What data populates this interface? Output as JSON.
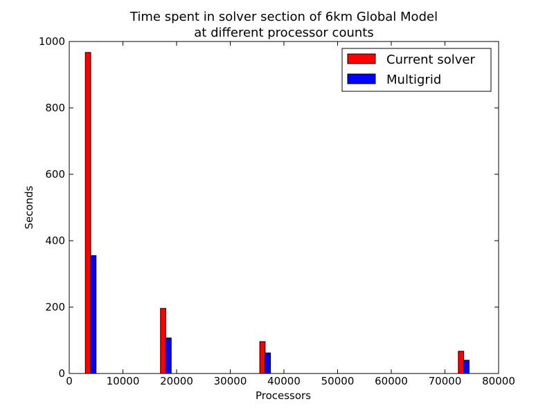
{
  "chart_data": {
    "type": "bar",
    "title": "Time spent in solver section of 6km Global Model",
    "subtitle": "at different processor counts",
    "xlabel": "Processors",
    "ylabel": "Seconds",
    "xlim": [
      0,
      80000
    ],
    "ylim": [
      0,
      1000
    ],
    "xticks": [
      0,
      10000,
      20000,
      30000,
      40000,
      50000,
      60000,
      70000,
      80000
    ],
    "yticks": [
      0,
      200,
      400,
      600,
      800,
      1000
    ],
    "grid": false,
    "legend_position": "top-right",
    "x": [
      4000,
      18000,
      36500,
      73500
    ],
    "bar_width": 1000,
    "series": [
      {
        "name": "Current solver",
        "color": "#ff0000",
        "offset": -500,
        "values": [
          967,
          196,
          96,
          67
        ]
      },
      {
        "name": "Multigrid",
        "color": "#0000ff",
        "offset": 500,
        "values": [
          355,
          107,
          62,
          40
        ]
      }
    ]
  }
}
